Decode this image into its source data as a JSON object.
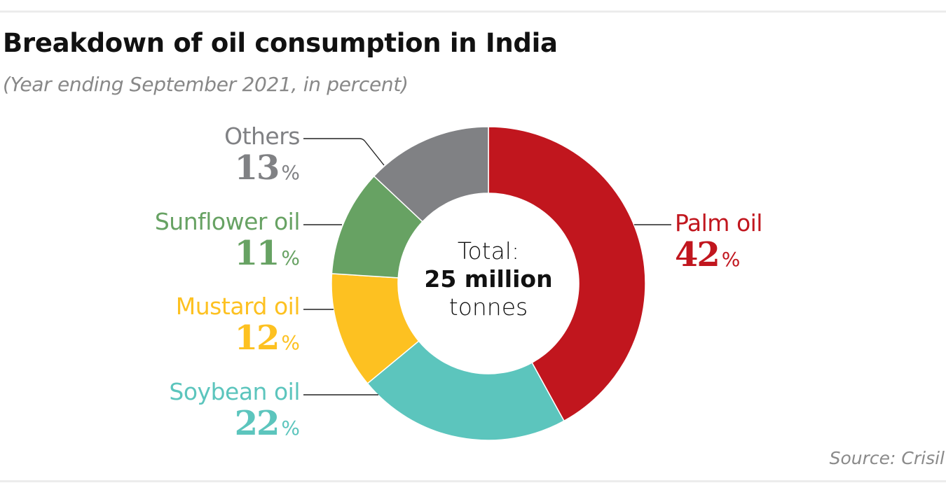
{
  "header": {
    "title": "Breakdown of oil consumption in India",
    "subtitle": "(Year ending September 2021, in percent)"
  },
  "footer": {
    "source": "Source: Crisil"
  },
  "center_label": {
    "line1": "Total:",
    "line2": "25 million",
    "line3": "tonnes"
  },
  "chart_data": {
    "type": "pie",
    "variant": "donut",
    "title": "Breakdown of oil consumption in India",
    "subtitle": "(Year ending September 2021, in percent)",
    "unit": "%",
    "total_label": "Total: 25 million tonnes",
    "start": "12 o'clock",
    "direction": "clockwise",
    "categories": [
      "Palm oil",
      "Soybean oil",
      "Mustard oil",
      "Sunflower oil",
      "Others"
    ],
    "values": [
      42,
      22,
      12,
      11,
      13
    ],
    "colors": [
      "#c1161e",
      "#5cc5bd",
      "#fdc121",
      "#67a263",
      "#808184"
    ],
    "labels": [
      {
        "name": "Palm oil",
        "value": "42",
        "sign": "%",
        "side": "right"
      },
      {
        "name": "Soybean oil",
        "value": "22",
        "sign": "%",
        "side": "left"
      },
      {
        "name": "Mustard oil",
        "value": "12",
        "sign": "%",
        "side": "left"
      },
      {
        "name": "Sunflower oil",
        "value": "11",
        "sign": "%",
        "side": "left"
      },
      {
        "name": "Others",
        "value": "13",
        "sign": "%",
        "side": "left"
      }
    ],
    "source": "Source: Crisil"
  }
}
